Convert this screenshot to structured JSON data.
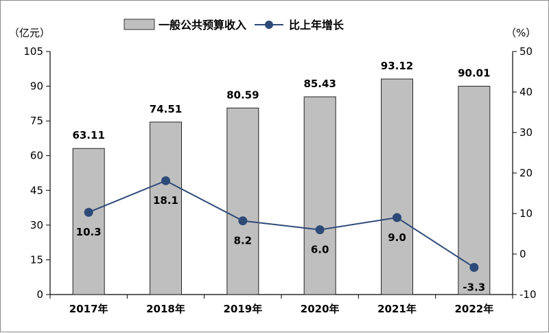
{
  "chart_data": {
    "type": "bar+line",
    "categories": [
      "2017年",
      "2018年",
      "2019年",
      "2020年",
      "2021年",
      "2022年"
    ],
    "series": [
      {
        "name": "一般公共预算收入",
        "type": "bar",
        "axis": "left",
        "values": [
          63.11,
          74.51,
          80.59,
          85.43,
          93.12,
          90.01
        ],
        "labels": [
          "63.11",
          "74.51",
          "80.59",
          "85.43",
          "93.12",
          "90.01"
        ],
        "color": "#bfbfbf"
      },
      {
        "name": "比上年增长",
        "type": "line",
        "axis": "right",
        "values": [
          10.3,
          18.1,
          8.2,
          6.0,
          9.0,
          -3.3
        ],
        "labels": [
          "10.3",
          "18.1",
          "8.2",
          "6.0",
          "9.0",
          "-3.3"
        ],
        "color": "#2e4a78"
      }
    ],
    "y_left": {
      "unit": "（亿元）",
      "min": 0,
      "max": 105,
      "ticks": [
        0,
        15,
        30,
        45,
        60,
        75,
        90,
        105
      ]
    },
    "y_right": {
      "unit": "（%）",
      "min": -10,
      "max": 50,
      "ticks": [
        -10,
        0,
        10,
        20,
        30,
        40,
        50
      ]
    },
    "legend_position": "top-center",
    "grid": false
  }
}
